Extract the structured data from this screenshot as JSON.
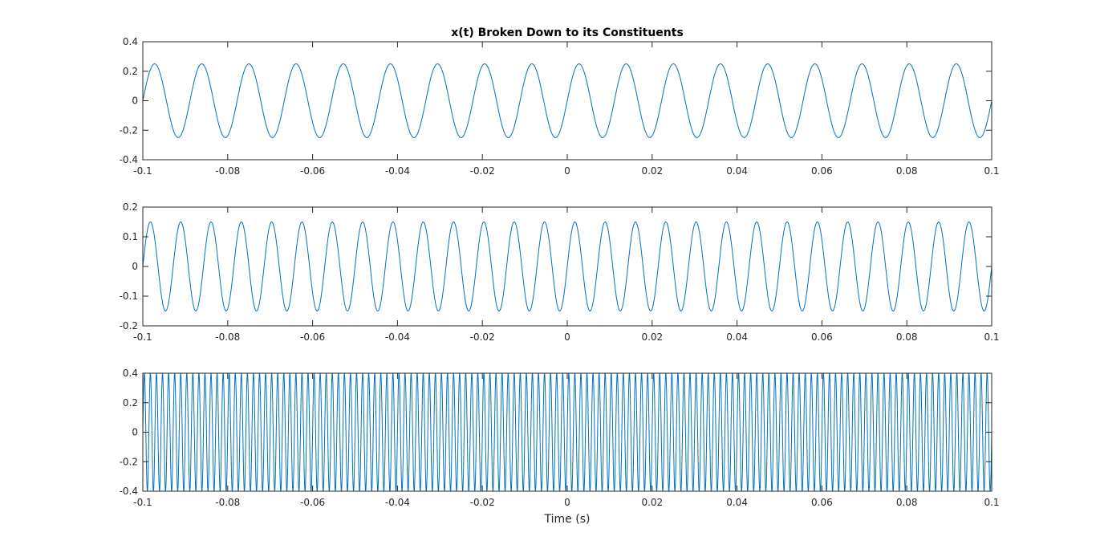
{
  "colors": {
    "series": "#0072bd",
    "axis": "#262626",
    "background": "#ffffff"
  },
  "chart_data": [
    {
      "type": "line",
      "title": "x(t) Broken Down to its Constituents",
      "xlabel": "",
      "ylabel": "",
      "xlim": [
        -0.1,
        0.1
      ],
      "ylim": [
        -0.4,
        0.4
      ],
      "x_ticks": [
        -0.1,
        -0.08,
        -0.06,
        -0.04,
        -0.02,
        0,
        0.02,
        0.04,
        0.06,
        0.08,
        0.1
      ],
      "x_tick_labels": [
        "-0.1",
        "-0.08",
        "-0.06",
        "-0.04",
        "-0.02",
        "0",
        "0.02",
        "0.04",
        "0.06",
        "0.08",
        "0.1"
      ],
      "y_ticks": [
        -0.4,
        -0.2,
        0,
        0.2,
        0.4
      ],
      "y_tick_labels": [
        "-0.4",
        "-0.2",
        "0",
        "0.2",
        "0.4"
      ],
      "grid": false,
      "series": [
        {
          "function": "sine",
          "amplitude": 0.25,
          "frequency_hz": 90,
          "t_range": [
            -0.1,
            0.1
          ]
        }
      ]
    },
    {
      "type": "line",
      "title": "",
      "xlabel": "",
      "ylabel": "",
      "xlim": [
        -0.1,
        0.1
      ],
      "ylim": [
        -0.2,
        0.2
      ],
      "x_ticks": [
        -0.1,
        -0.08,
        -0.06,
        -0.04,
        -0.02,
        0,
        0.02,
        0.04,
        0.06,
        0.08,
        0.1
      ],
      "x_tick_labels": [
        "-0.1",
        "-0.08",
        "-0.06",
        "-0.04",
        "-0.02",
        "0",
        "0.02",
        "0.04",
        "0.06",
        "0.08",
        "0.1"
      ],
      "y_ticks": [
        -0.2,
        -0.1,
        0,
        0.1,
        0.2
      ],
      "y_tick_labels": [
        "-0.2",
        "-0.1",
        "0",
        "0.1",
        "0.2"
      ],
      "grid": false,
      "series": [
        {
          "function": "sine",
          "amplitude": 0.15,
          "frequency_hz": 140,
          "t_range": [
            -0.1,
            0.1
          ]
        }
      ]
    },
    {
      "type": "line",
      "title": "",
      "xlabel": "Time (s)",
      "ylabel": "",
      "xlim": [
        -0.1,
        0.1
      ],
      "ylim": [
        -0.4,
        0.4
      ],
      "x_ticks": [
        -0.1,
        -0.08,
        -0.06,
        -0.04,
        -0.02,
        0,
        0.02,
        0.04,
        0.06,
        0.08,
        0.1
      ],
      "x_tick_labels": [
        "-0.1",
        "-0.08",
        "-0.06",
        "-0.04",
        "-0.02",
        "0",
        "0.02",
        "0.04",
        "0.06",
        "0.08",
        "0.1"
      ],
      "y_ticks": [
        -0.4,
        -0.2,
        0,
        0.2,
        0.4
      ],
      "y_tick_labels": [
        "-0.4",
        "-0.2",
        "0",
        "0.2",
        "0.4"
      ],
      "grid": false,
      "series": [
        {
          "function": "sine",
          "amplitude": 0.4,
          "frequency_hz": 700,
          "t_range": [
            -0.1,
            0.1
          ]
        }
      ]
    }
  ]
}
